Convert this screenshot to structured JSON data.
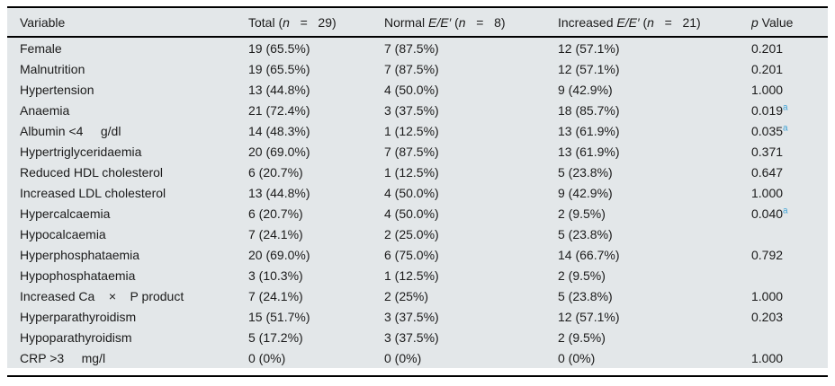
{
  "meta": {
    "background": "#ffffff",
    "table_bg": "#e3e7e9",
    "text_color": "#1b1b1b",
    "rule_color": "#000000",
    "footnote_color": "#42a4d6"
  },
  "table": {
    "headers": [
      {
        "name": "variable",
        "parts": [
          {
            "t": "Variable"
          }
        ]
      },
      {
        "name": "total",
        "parts": [
          {
            "t": "Total ("
          },
          {
            "t": "n",
            "i": true
          },
          {
            "t": "   =   29)"
          }
        ]
      },
      {
        "name": "normal",
        "parts": [
          {
            "t": "Normal "
          },
          {
            "t": "E/E′",
            "i": true
          },
          {
            "t": " ("
          },
          {
            "t": "n",
            "i": true
          },
          {
            "t": "   =   8)"
          }
        ]
      },
      {
        "name": "increased",
        "parts": [
          {
            "t": "Increased "
          },
          {
            "t": "E/E′",
            "i": true
          },
          {
            "t": " ("
          },
          {
            "t": "n",
            "i": true
          },
          {
            "t": "   =   21)"
          }
        ]
      },
      {
        "name": "p-value",
        "parts": [
          {
            "t": "p",
            "i": true
          },
          {
            "t": " Value"
          }
        ]
      }
    ],
    "rows": [
      {
        "variable": "Female",
        "total": "19 (65.5%)",
        "normal": "7 (87.5%)",
        "increased": "12 (57.1%)",
        "p": "0.201",
        "p_sup": ""
      },
      {
        "variable": "Malnutrition",
        "total": "19 (65.5%)",
        "normal": "7 (87.5%)",
        "increased": "12 (57.1%)",
        "p": "0.201",
        "p_sup": ""
      },
      {
        "variable": "Hypertension",
        "total": "13 (44.8%)",
        "normal": "4 (50.0%)",
        "increased": "9 (42.9%)",
        "p": "1.000",
        "p_sup": ""
      },
      {
        "variable": "Anaemia",
        "total": "21 (72.4%)",
        "normal": "3 (37.5%)",
        "increased": "18 (85.7%)",
        "p": "0.019",
        "p_sup": "a"
      },
      {
        "variable": "Albumin <4     g/dl",
        "total": "14 (48.3%)",
        "normal": "1 (12.5%)",
        "increased": "13 (61.9%)",
        "p": "0.035",
        "p_sup": "a"
      },
      {
        "variable": "Hypertriglyceridaemia",
        "total": "20 (69.0%)",
        "normal": "7 (87.5%)",
        "increased": "13 (61.9%)",
        "p": "0.371",
        "p_sup": ""
      },
      {
        "variable": "Reduced HDL cholesterol",
        "total": "6 (20.7%)",
        "normal": "1 (12.5%)",
        "increased": "5 (23.8%)",
        "p": "0.647",
        "p_sup": ""
      },
      {
        "variable": "Increased LDL cholesterol",
        "total": "13 (44.8%)",
        "normal": "4 (50.0%)",
        "increased": "9 (42.9%)",
        "p": "1.000",
        "p_sup": ""
      },
      {
        "variable": "Hypercalcaemia",
        "total": "6 (20.7%)",
        "normal": "4 (50.0%)",
        "increased": "2 (9.5%)",
        "p": "0.040",
        "p_sup": "a"
      },
      {
        "variable": "Hypocalcaemia",
        "total": "7 (24.1%)",
        "normal": "2 (25.0%)",
        "increased": "5 (23.8%)",
        "p": "",
        "p_sup": ""
      },
      {
        "variable": "Hyperphosphataemia",
        "total": "20 (69.0%)",
        "normal": "6 (75.0%)",
        "increased": "14 (66.7%)",
        "p": "0.792",
        "p_sup": ""
      },
      {
        "variable": "Hypophosphataemia",
        "total": "3 (10.3%)",
        "normal": "1 (12.5%)",
        "increased": "2 (9.5%)",
        "p": "",
        "p_sup": ""
      },
      {
        "variable": "Increased Ca    ×    P product",
        "total": "7 (24.1%)",
        "normal": "2 (25%)",
        "increased": "5 (23.8%)",
        "p": "1.000",
        "p_sup": ""
      },
      {
        "variable": "Hyperparathyroidism",
        "total": "15 (51.7%)",
        "normal": "3 (37.5%)",
        "increased": "12 (57.1%)",
        "p": "0.203",
        "p_sup": ""
      },
      {
        "variable": "Hypoparathyroidism",
        "total": "5 (17.2%)",
        "normal": "3 (37.5%)",
        "increased": "2 (9.5%)",
        "p": "",
        "p_sup": ""
      },
      {
        "variable": "CRP >3     mg/l",
        "total": "0 (0%)",
        "normal": "0 (0%)",
        "increased": "0 (0%)",
        "p": "1.000",
        "p_sup": ""
      }
    ]
  }
}
